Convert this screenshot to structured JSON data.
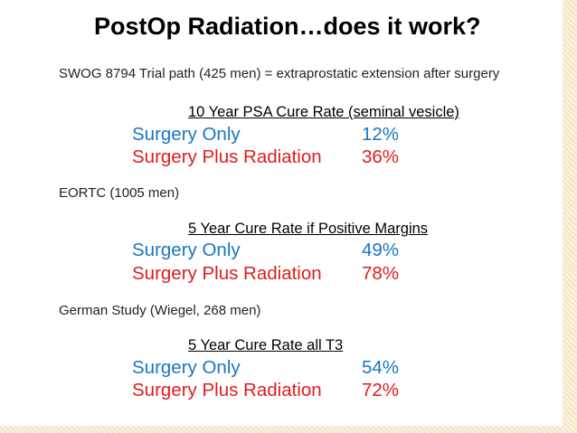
{
  "title": "PostOp Radiation…does it work?",
  "sections": [
    {
      "note": "SWOG 8794 Trial path (425 men) = extraprostatic extension after surgery",
      "heading": "10 Year PSA Cure Rate (seminal vesicle)",
      "rows": [
        {
          "label": "Surgery Only",
          "value": "12%"
        },
        {
          "label": "Surgery Plus Radiation",
          "value": "36%"
        }
      ]
    },
    {
      "note": "EORTC (1005 men)",
      "heading": "5 Year Cure Rate if Positive Margins",
      "rows": [
        {
          "label": "Surgery Only",
          "value": "49%"
        },
        {
          "label": "Surgery Plus Radiation",
          "value": "78%"
        }
      ]
    },
    {
      "note": "German Study (Wiegel, 268 men)",
      "heading": "5 Year Cure Rate all T3",
      "rows": [
        {
          "label": "Surgery Only",
          "value": "54%"
        },
        {
          "label": "Surgery Plus Radiation",
          "value": "72%"
        }
      ]
    }
  ],
  "colors": {
    "surgery_only": "#1a75c2",
    "surgery_plus_radiation": "#e01b1b",
    "border": "#f4e5c9"
  }
}
